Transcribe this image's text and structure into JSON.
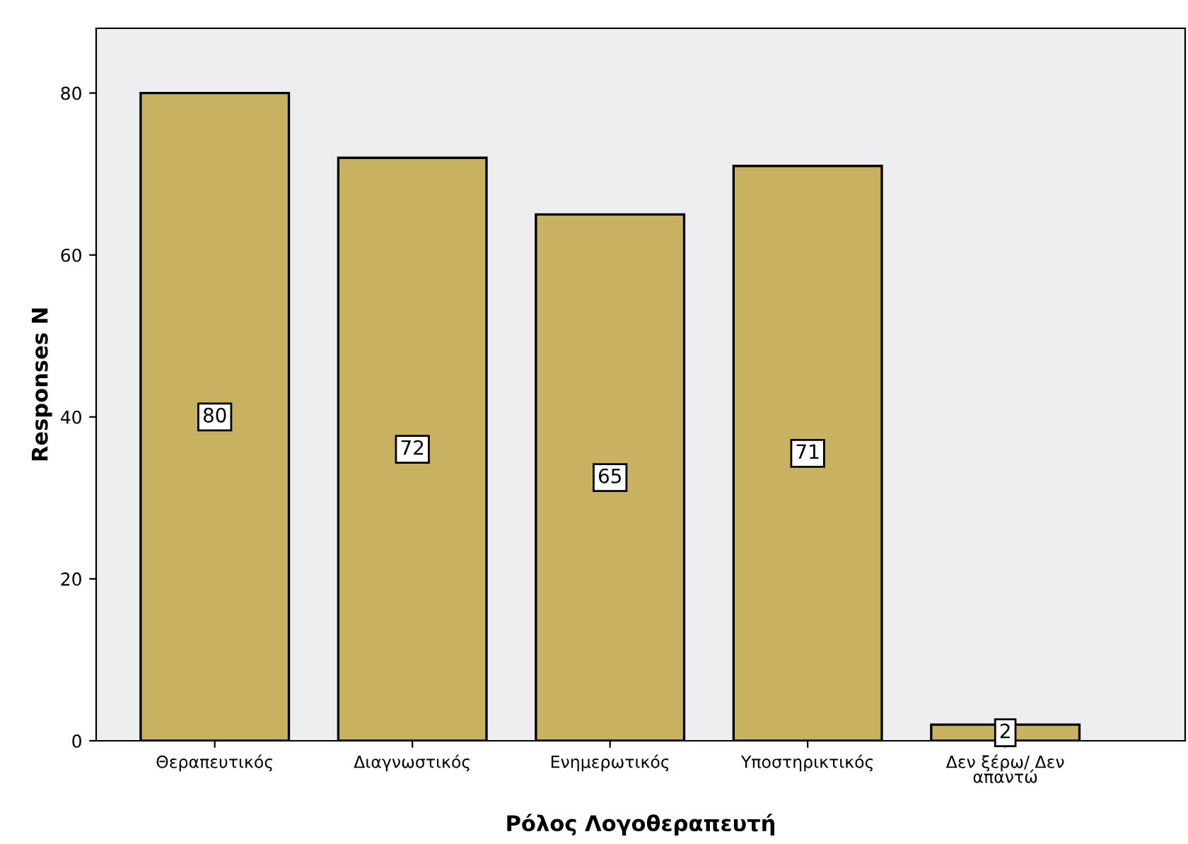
{
  "chart_data": {
    "type": "bar",
    "categories": [
      "Θεραπευτικός",
      "Διαγνωστικός",
      "Ενημερωτικός",
      "Υποστηρικτικός",
      "Δεν ξέρω/ Δεν\nαπαντώ"
    ],
    "values": [
      80,
      72,
      65,
      71,
      2
    ],
    "color": "#c8b262",
    "xlabel": "Ρόλος Λογοθεραπευτή",
    "ylabel": "Responses N",
    "ylim": [
      0,
      88
    ],
    "yticks": [
      0,
      20,
      40,
      60,
      80
    ],
    "data_labels": true,
    "grid": false
  }
}
